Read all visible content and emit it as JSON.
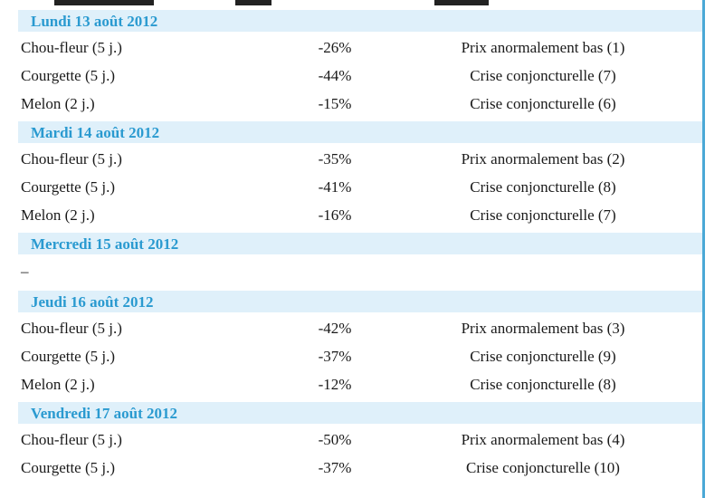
{
  "days": [
    {
      "label": "Lundi 13 août 2012",
      "rows": [
        {
          "product": "Chou-fleur (5 j.)",
          "pct": "-26%",
          "status": "Prix anormalement bas (1)"
        },
        {
          "product": "Courgette (5 j.)",
          "pct": "-44%",
          "status": "Crise conjoncturelle (7)"
        },
        {
          "product": "Melon (2 j.)",
          "pct": "-15%",
          "status": "Crise conjoncturelle (6)"
        }
      ]
    },
    {
      "label": "Mardi 14 août 2012",
      "rows": [
        {
          "product": "Chou-fleur (5 j.)",
          "pct": "-35%",
          "status": "Prix anormalement bas (2)"
        },
        {
          "product": "Courgette (5 j.)",
          "pct": "-41%",
          "status": "Crise conjoncturelle (8)"
        },
        {
          "product": "Melon (2 j.)",
          "pct": "-16%",
          "status": "Crise conjoncturelle (7)"
        }
      ]
    },
    {
      "label": "Mercredi 15 août 2012",
      "empty": "–"
    },
    {
      "label": "Jeudi 16 août 2012",
      "rows": [
        {
          "product": "Chou-fleur (5 j.)",
          "pct": "-42%",
          "status": "Prix anormalement bas (3)"
        },
        {
          "product": "Courgette (5 j.)",
          "pct": "-37%",
          "status": "Crise conjoncturelle (9)"
        },
        {
          "product": "Melon (2 j.)",
          "pct": "-12%",
          "status": "Crise conjoncturelle (8)"
        }
      ]
    },
    {
      "label": "Vendredi 17 août 2012",
      "rows": [
        {
          "product": "Chou-fleur (5 j.)",
          "pct": "-50%",
          "status": "Prix anormalement bas (4)"
        },
        {
          "product": "Courgette (5 j.)",
          "pct": "-37%",
          "status": "Crise conjoncturelle (10)"
        }
      ]
    }
  ]
}
